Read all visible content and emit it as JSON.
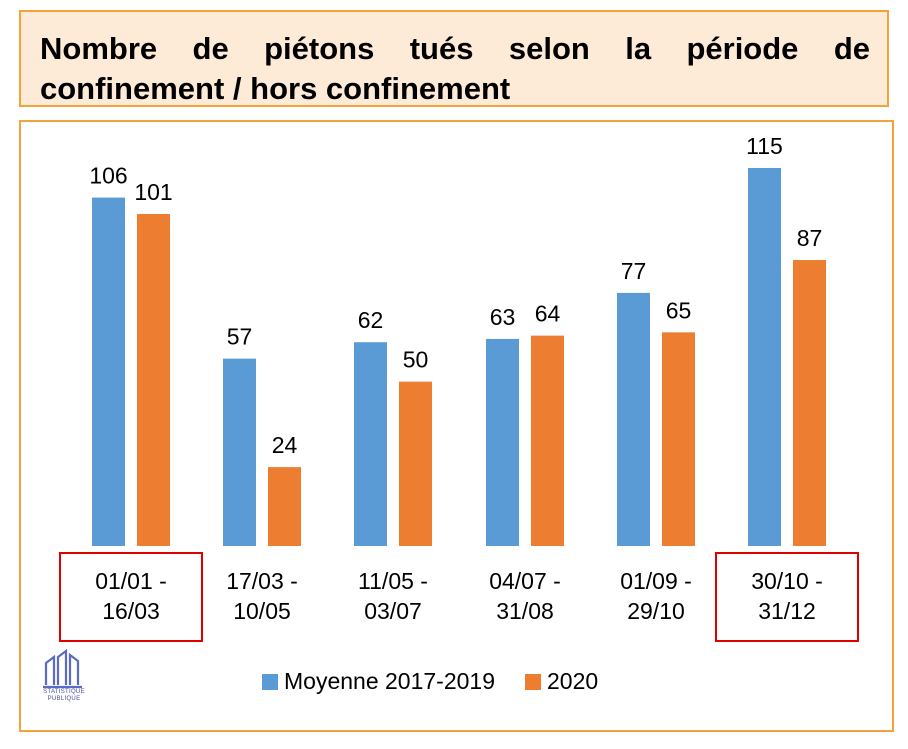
{
  "title": "Nombre de piétons tués selon la période de confinement / hors confinement",
  "colors": {
    "series1": "#5b9bd5",
    "series2": "#ed7d31",
    "frame": "#f2a33a",
    "title_bg": "#fdebd8",
    "highlight": "#e00000"
  },
  "logo": {
    "icon": "building-columns-icon",
    "text_line1": "STATISTIQUE",
    "text_line2": "PUBLIQUE"
  },
  "chart_data": {
    "type": "bar",
    "categories": [
      [
        "01/01 -",
        "16/03"
      ],
      [
        "17/03 -",
        "10/05"
      ],
      [
        "11/05 -",
        "03/07"
      ],
      [
        "04/07 -",
        "31/08"
      ],
      [
        "01/09 -",
        "29/10"
      ],
      [
        "30/10 -",
        "31/12"
      ]
    ],
    "series": [
      {
        "name": "Moyenne 2017-2019",
        "values": [
          106,
          57,
          62,
          63,
          77,
          115
        ]
      },
      {
        "name": "2020",
        "values": [
          101,
          24,
          50,
          64,
          65,
          87
        ]
      }
    ],
    "highlighted_categories": [
      0,
      5
    ],
    "legend_position": "bottom",
    "grid": false,
    "ylim": [
      0,
      115
    ]
  }
}
